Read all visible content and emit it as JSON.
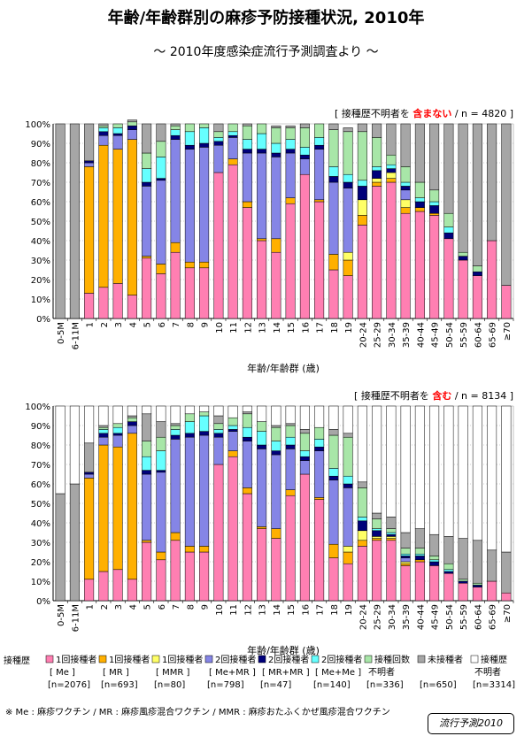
{
  "header": {
    "title": "年齢/年齢群別の麻疹予防接種状況, 2010年",
    "subtitle": "〜 2010年度感染症流行予測調査より 〜"
  },
  "colors": {
    "c1": "#ff7fb2",
    "c2": "#ffb000",
    "c3": "#ffff66",
    "c4": "#8585e6",
    "c5": "#00007a",
    "c6": "#66ffff",
    "c7": "#a8e6a8",
    "c8": "#a6a6a6",
    "c9": "#ffffff"
  },
  "chart_data": [
    {
      "type": "bar",
      "stacked": true,
      "panel_label": {
        "prefix": "[ 接種歴不明者を ",
        "highlight": "含まない",
        "suffix": " / n = 4820 ]"
      },
      "ylim": [
        0,
        100
      ],
      "yticks": [
        "0%",
        "10%",
        "20%",
        "30%",
        "40%",
        "50%",
        "60%",
        "70%",
        "80%",
        "90%",
        "100%"
      ],
      "xlabel": "年齢/年齢群 (歳)",
      "categories": [
        "0-5M",
        "6-11M",
        "1",
        "2",
        "3",
        "4",
        "5",
        "6",
        "7",
        "8",
        "9",
        "10",
        "11",
        "12",
        "13",
        "14",
        "15",
        "16",
        "17",
        "18",
        "19",
        "20-24",
        "25-29",
        "30-34",
        "35-39",
        "40-44",
        "45-49",
        "50-54",
        "55-59",
        "60-64",
        "65-69",
        "≥70"
      ],
      "series": [
        {
          "name": "1回接種者 [Me]",
          "values": [
            0,
            0,
            13,
            16,
            18,
            12,
            31,
            23,
            34,
            26,
            26,
            75,
            79,
            57,
            40,
            34,
            59,
            74,
            60,
            25,
            22,
            48,
            68,
            70,
            54,
            55,
            53,
            41,
            30,
            22,
            40,
            17
          ]
        },
        {
          "name": "1回接種者 [MR]",
          "values": [
            0,
            0,
            65,
            73,
            69,
            80,
            1,
            5,
            5,
            3,
            3,
            0,
            3,
            3,
            1,
            7,
            3,
            0,
            1,
            8,
            8,
            5,
            2,
            2,
            3,
            2,
            1,
            0,
            0,
            0,
            0,
            0
          ]
        },
        {
          "name": "1回接種者 [MMR]",
          "values": [
            0,
            0,
            0,
            0,
            0,
            0,
            0,
            0,
            0,
            0,
            0,
            0,
            0,
            0,
            0,
            0,
            0,
            0,
            0,
            0,
            4,
            8,
            2,
            3,
            4,
            0,
            0,
            0,
            0,
            0,
            0,
            0
          ]
        },
        {
          "name": "2回接種者 [Me+MR]",
          "values": [
            0,
            0,
            2,
            5,
            7,
            5,
            36,
            43,
            53,
            58,
            59,
            14,
            11,
            25,
            44,
            42,
            23,
            8,
            26,
            37,
            33,
            0,
            0,
            0,
            5,
            0,
            0,
            0,
            0,
            0,
            0,
            0
          ]
        },
        {
          "name": "2回接種者 [MR+MR]",
          "values": [
            0,
            0,
            1,
            2,
            1,
            2,
            2,
            1,
            2,
            2,
            2,
            2,
            1,
            2,
            2,
            2,
            2,
            2,
            2,
            3,
            3,
            7,
            4,
            2,
            2,
            3,
            4,
            3,
            2,
            2,
            0,
            0
          ]
        },
        {
          "name": "2回接種者 [Me+Me]",
          "values": [
            0,
            0,
            0,
            2,
            3,
            0,
            7,
            11,
            3,
            7,
            8,
            2,
            2,
            5,
            8,
            5,
            5,
            4,
            4,
            5,
            4,
            3,
            2,
            2,
            2,
            2,
            2,
            3,
            0,
            0,
            0,
            0
          ]
        },
        {
          "name": "接種回数不明者",
          "values": [
            0,
            0,
            0,
            1,
            2,
            2,
            8,
            8,
            2,
            4,
            2,
            3,
            4,
            7,
            5,
            8,
            6,
            10,
            7,
            19,
            22,
            25,
            15,
            5,
            8,
            8,
            6,
            7,
            2,
            3,
            0,
            0
          ]
        },
        {
          "name": "未接種者",
          "values": [
            100,
            100,
            19,
            1,
            0,
            1,
            15,
            9,
            1,
            0,
            0,
            4,
            0,
            1,
            0,
            1,
            1,
            2,
            0,
            3,
            2,
            4,
            7,
            16,
            22,
            30,
            34,
            46,
            66,
            73,
            60,
            83
          ]
        }
      ]
    },
    {
      "type": "bar",
      "stacked": true,
      "panel_label": {
        "prefix": "[ 接種歴不明者を ",
        "highlight": "含む",
        "suffix": " / n = 8134 ]"
      },
      "ylim": [
        0,
        100
      ],
      "yticks": [
        "0%",
        "10%",
        "20%",
        "30%",
        "40%",
        "50%",
        "60%",
        "70%",
        "80%",
        "90%",
        "100%"
      ],
      "xlabel": "年齢/年齢群 (歳)",
      "categories": [
        "0-5M",
        "6-11M",
        "1",
        "2",
        "3",
        "4",
        "5",
        "6",
        "7",
        "8",
        "9",
        "10",
        "11",
        "12",
        "13",
        "14",
        "15",
        "16",
        "17",
        "18",
        "19",
        "20-24",
        "25-29",
        "30-34",
        "35-39",
        "40-44",
        "45-49",
        "50-54",
        "55-59",
        "60-64",
        "65-69",
        "≥70"
      ],
      "series": [
        {
          "name": "1回接種者 [Me]",
          "values": [
            0,
            0,
            11,
            15,
            16,
            11,
            30,
            21,
            31,
            25,
            25,
            70,
            74,
            55,
            37,
            32,
            54,
            65,
            52,
            22,
            19,
            28,
            31,
            31,
            18,
            20,
            18,
            14,
            9,
            7,
            10,
            4
          ]
        },
        {
          "name": "1回接種者 [MR]",
          "values": [
            0,
            0,
            52,
            65,
            63,
            75,
            1,
            4,
            4,
            3,
            3,
            0,
            3,
            3,
            1,
            5,
            3,
            0,
            1,
            7,
            6,
            3,
            1,
            1,
            1,
            1,
            0,
            0,
            0,
            0,
            0,
            0
          ]
        },
        {
          "name": "1回接種者 [MMR]",
          "values": [
            0,
            0,
            0,
            0,
            0,
            0,
            0,
            0,
            0,
            0,
            0,
            0,
            0,
            0,
            0,
            0,
            0,
            0,
            0,
            0,
            3,
            5,
            1,
            1,
            1,
            0,
            0,
            0,
            0,
            0,
            0,
            0
          ]
        },
        {
          "name": "2回接種者 [Me+MR]",
          "values": [
            0,
            0,
            2,
            4,
            6,
            4,
            34,
            41,
            48,
            56,
            57,
            14,
            10,
            24,
            40,
            38,
            21,
            7,
            24,
            33,
            30,
            0,
            0,
            0,
            2,
            0,
            0,
            0,
            0,
            0,
            0,
            0
          ]
        },
        {
          "name": "2回接種者 [MR+MR]",
          "values": [
            0,
            0,
            1,
            2,
            1,
            2,
            2,
            1,
            2,
            2,
            2,
            2,
            1,
            2,
            2,
            2,
            2,
            2,
            2,
            2,
            2,
            5,
            3,
            1,
            1,
            2,
            2,
            1,
            1,
            1,
            0,
            0
          ]
        },
        {
          "name": "2回接種者 [Me+Me]",
          "values": [
            0,
            0,
            0,
            2,
            3,
            0,
            7,
            10,
            3,
            6,
            8,
            2,
            2,
            5,
            7,
            5,
            4,
            3,
            4,
            4,
            4,
            2,
            1,
            1,
            1,
            1,
            1,
            1,
            0,
            0,
            0,
            0
          ]
        },
        {
          "name": "接種回数不明者",
          "values": [
            0,
            0,
            0,
            1,
            2,
            2,
            8,
            7,
            2,
            4,
            2,
            3,
            4,
            7,
            5,
            7,
            6,
            9,
            6,
            17,
            20,
            15,
            5,
            2,
            3,
            3,
            2,
            3,
            1,
            1,
            0,
            0
          ]
        },
        {
          "name": "未接種者",
          "values": [
            55,
            60,
            15,
            1,
            0,
            1,
            14,
            8,
            1,
            0,
            0,
            4,
            0,
            1,
            0,
            1,
            1,
            2,
            0,
            3,
            2,
            3,
            3,
            6,
            8,
            10,
            11,
            14,
            21,
            22,
            16,
            21
          ]
        },
        {
          "name": "接種歴不明者",
          "values": [
            45,
            40,
            19,
            10,
            9,
            5,
            4,
            8,
            9,
            4,
            3,
            5,
            6,
            3,
            8,
            10,
            9,
            12,
            11,
            12,
            14,
            39,
            55,
            57,
            65,
            63,
            66,
            67,
            68,
            69,
            74,
            75
          ]
        }
      ]
    }
  ],
  "legend": {
    "heading": "接種歴",
    "items": [
      {
        "key": "c1",
        "line1": "1回接種者",
        "line2": "[ Me ]",
        "line3": "[n=2076]"
      },
      {
        "key": "c2",
        "line1": "1回接種者",
        "line2": "[ MR ]",
        "line3": "[n=693]"
      },
      {
        "key": "c3",
        "line1": "1回接種者",
        "line2": "[ MMR ]",
        "line3": "[n=80]"
      },
      {
        "key": "c4",
        "line1": "2回接種者",
        "line2": "[ Me+MR ]",
        "line3": "[n=798]"
      },
      {
        "key": "c5",
        "line1": "2回接種者",
        "line2": "[ MR+MR ]",
        "line3": "[n=47]"
      },
      {
        "key": "c6",
        "line1": "2回接種者",
        "line2": "[ Me+Me ]",
        "line3": "[n=140]"
      },
      {
        "key": "c7",
        "line1": "接種回数",
        "line2": "不明者",
        "line3": "[n=336]"
      },
      {
        "key": "c8",
        "line1": "未接種者",
        "line2": "",
        "line3": "[n=650]"
      },
      {
        "key": "c9",
        "line1": "接種歴",
        "line2": "不明者",
        "line3": "[n=3314]"
      }
    ]
  },
  "footnote": "※ Me : 麻疹ワクチン / MR : 麻疹風疹混合ワクチン / MMR : 麻疹おたふくかぜ風疹混合ワクチン",
  "brand": "流行予測2010"
}
